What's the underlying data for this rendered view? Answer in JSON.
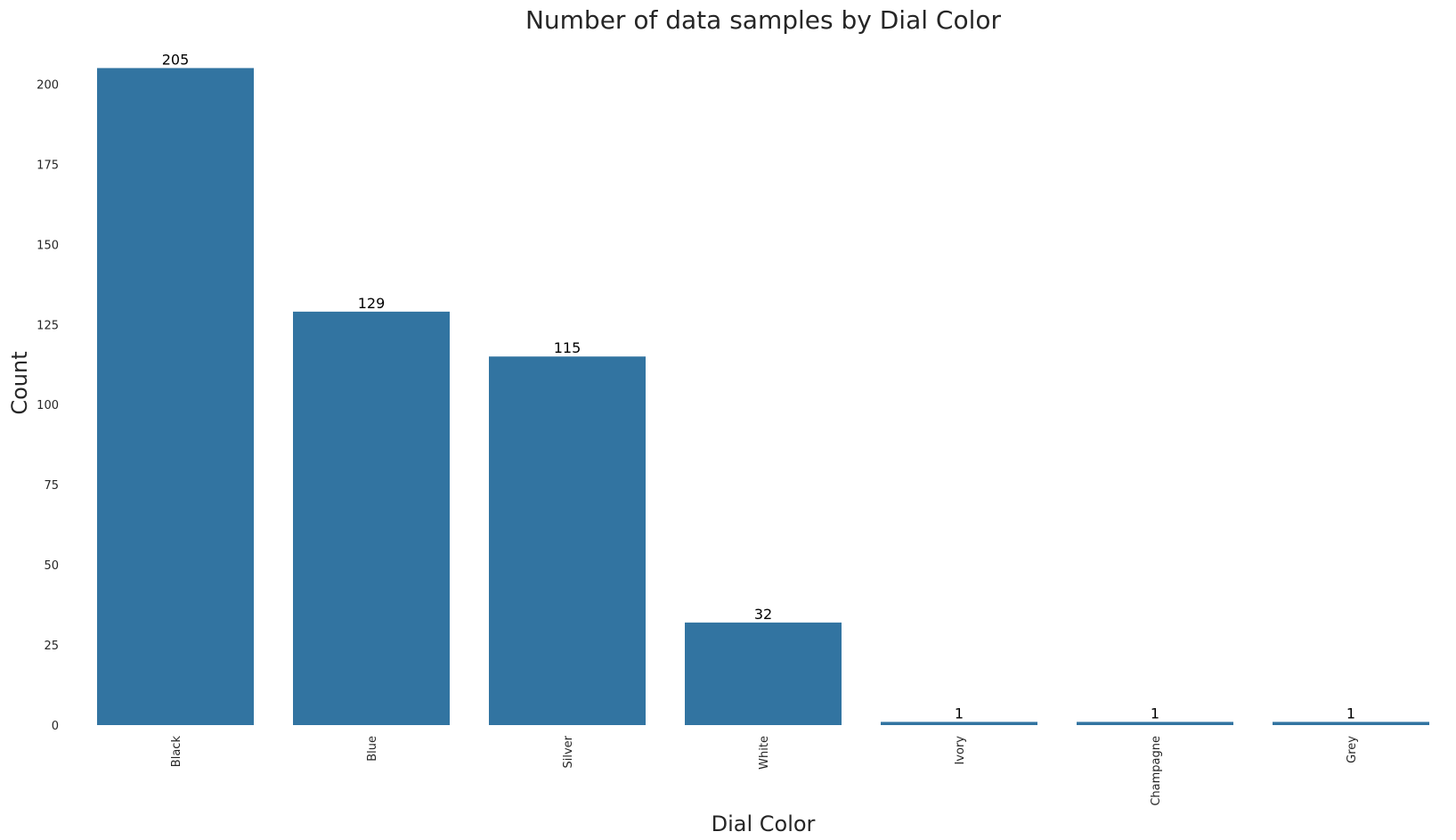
{
  "chart_data": {
    "type": "bar",
    "title": "Number of data samples by Dial Color",
    "xlabel": "Dial Color",
    "ylabel": "Count",
    "categories": [
      "Black",
      "Blue",
      "Silver",
      "White",
      "Ivory",
      "Champagne",
      "Grey"
    ],
    "values": [
      205,
      129,
      115,
      32,
      1,
      1,
      1
    ],
    "data_labels": [
      "205",
      "129",
      "115",
      "32",
      "1",
      "1",
      "1"
    ],
    "ylim": [
      0,
      210
    ],
    "yticks": [
      0,
      25,
      50,
      75,
      100,
      125,
      150,
      175,
      200
    ],
    "grid": false,
    "bar_color": "#3274a1",
    "background": "#ffffff"
  }
}
